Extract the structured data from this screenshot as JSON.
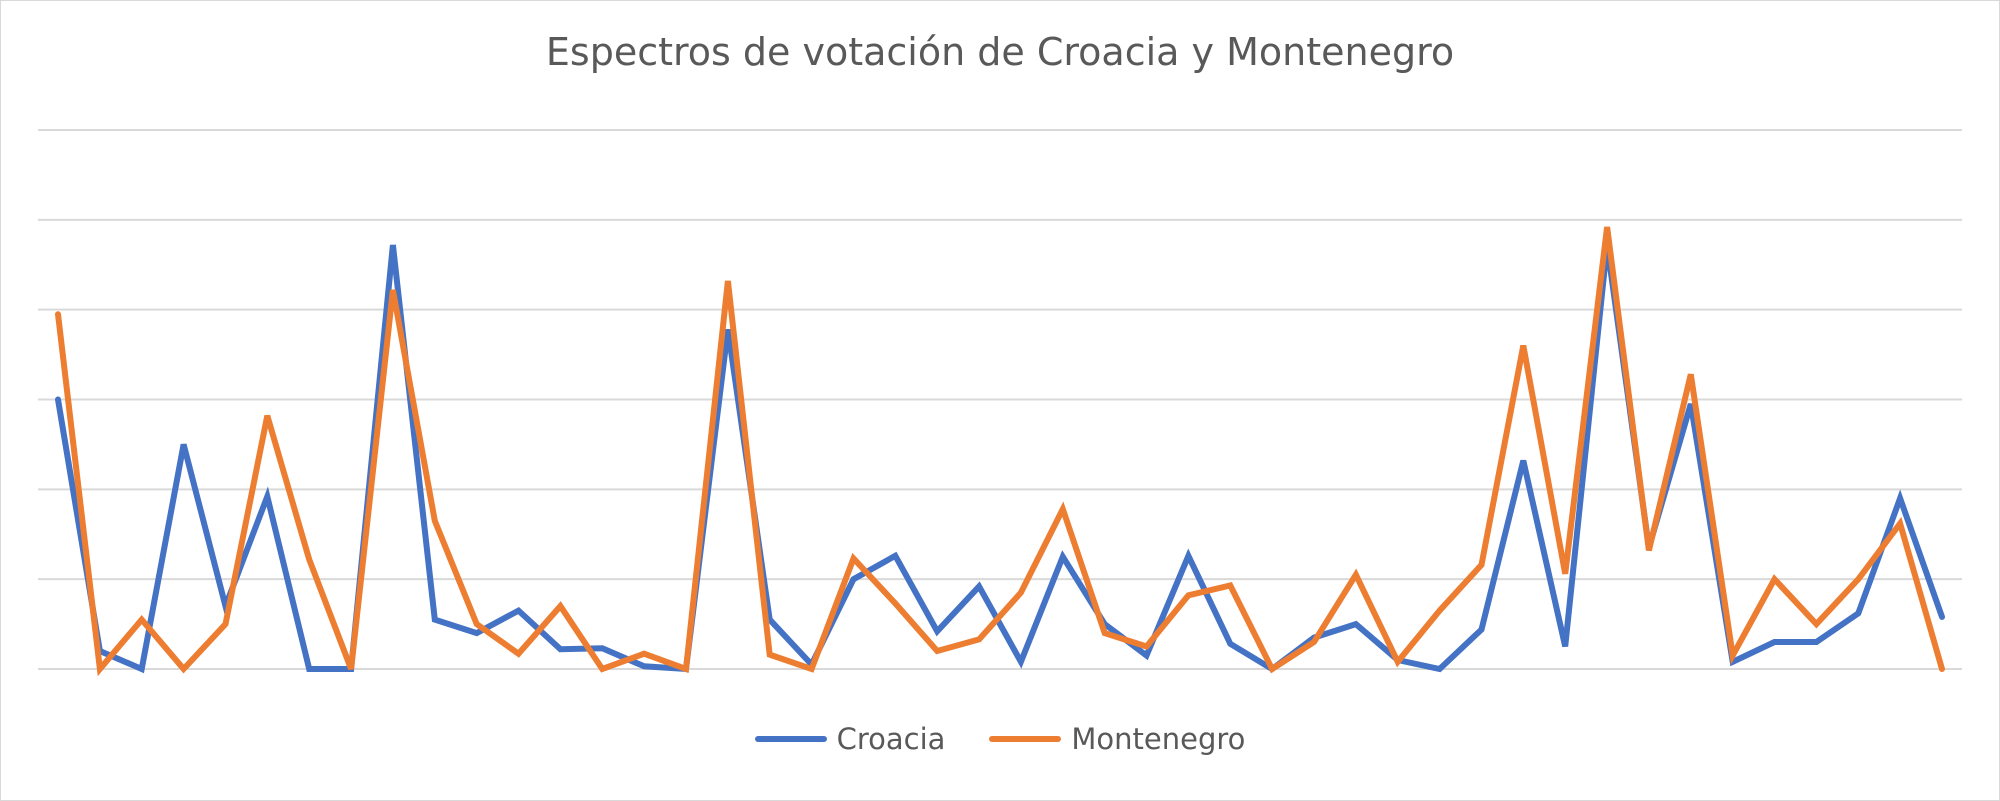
{
  "chart_data": {
    "type": "line",
    "title": "Espectros de votación de Croacia y Montenegro",
    "xlabel": "",
    "ylabel": "",
    "ylim": [
      0,
      6
    ],
    "yticks": [
      0,
      1,
      2,
      3,
      4,
      5,
      6
    ],
    "grid": true,
    "legend": "bottom",
    "x": [
      1,
      2,
      3,
      4,
      5,
      6,
      7,
      8,
      9,
      10,
      11,
      12,
      13,
      14,
      15,
      16,
      17,
      18,
      19,
      20,
      21,
      22,
      23,
      24,
      25,
      26,
      27,
      28,
      29,
      30,
      31,
      32,
      33,
      34,
      35,
      36,
      37,
      38,
      39,
      40,
      41,
      42,
      43,
      44,
      45,
      46
    ],
    "series": [
      {
        "name": "Croacia",
        "color": "#4472c4",
        "values": [
          3.0,
          0.2,
          0.0,
          2.5,
          0.7,
          1.92,
          0.0,
          0.0,
          4.72,
          0.55,
          0.4,
          0.65,
          0.22,
          0.23,
          0.03,
          0.0,
          3.78,
          0.55,
          0.05,
          1.0,
          1.26,
          0.42,
          0.92,
          0.08,
          1.25,
          0.5,
          0.15,
          1.26,
          0.28,
          0.0,
          0.35,
          0.5,
          0.1,
          0.0,
          0.44,
          2.32,
          0.25,
          4.72,
          1.35,
          2.95,
          0.08,
          0.3,
          0.3,
          0.62,
          1.9,
          0.58
        ]
      },
      {
        "name": "Montenegro",
        "color": "#ed7d31",
        "values": [
          3.95,
          0.0,
          0.55,
          0.0,
          0.5,
          2.82,
          1.22,
          0.0,
          4.22,
          1.65,
          0.5,
          0.17,
          0.7,
          0.0,
          0.17,
          0.0,
          4.32,
          0.16,
          0.0,
          1.23,
          0.73,
          0.2,
          0.33,
          0.85,
          1.78,
          0.4,
          0.25,
          0.82,
          0.93,
          0.0,
          0.3,
          1.05,
          0.08,
          0.65,
          1.16,
          3.6,
          1.06,
          4.92,
          1.32,
          3.28,
          0.15,
          1.0,
          0.5,
          1.0,
          1.62,
          0.0
        ]
      }
    ]
  }
}
